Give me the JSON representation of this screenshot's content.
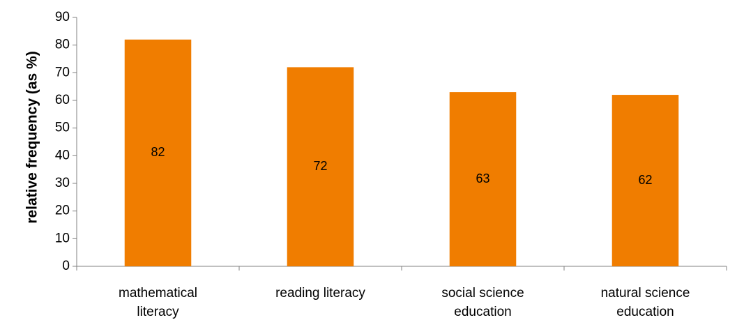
{
  "chart_data": {
    "type": "bar",
    "categories": [
      [
        "mathematical",
        "literacy"
      ],
      [
        "reading literacy"
      ],
      [
        "social science",
        "education"
      ],
      [
        "natural science",
        "education"
      ]
    ],
    "values": [
      82,
      72,
      63,
      62
    ],
    "data_labels": [
      "82",
      "72",
      "63",
      "62"
    ],
    "ylabel": "relative frequency (as %)",
    "ylim": [
      0,
      90
    ],
    "yticks": [
      0,
      10,
      20,
      30,
      40,
      50,
      60,
      70,
      80,
      90
    ],
    "grid": false,
    "legend": "none",
    "bar_color": "#F07D00",
    "axis_color": "#808080"
  }
}
